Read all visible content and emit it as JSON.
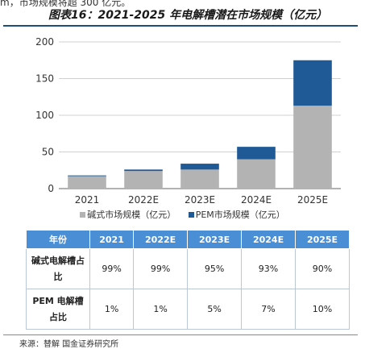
{
  "header_text": "m，市场规模将超 300 亿元。",
  "figure_title": "图表16：2021-2025 年电解槽潜在市场规模（亿元）",
  "chart_data": {
    "type": "bar",
    "stacked": true,
    "categories": [
      "2021",
      "2022E",
      "2023E",
      "2024E",
      "2025E"
    ],
    "series": [
      {
        "name": "碱式市场规模（亿元）",
        "color": "#b3b3b3",
        "values": [
          17,
          24,
          26,
          40,
          113
        ]
      },
      {
        "name": "PEM市场规模（亿元）",
        "color": "#1f5a96",
        "values": [
          1,
          2,
          8,
          17,
          62
        ]
      }
    ],
    "y_ticks": [
      "0",
      "50",
      "100",
      "150",
      "200"
    ],
    "ylim": [
      0,
      200
    ],
    "grid": true,
    "legend_position": "bottom"
  },
  "table": {
    "headers": [
      "年份",
      "2021",
      "2022E",
      "2023E",
      "2024E",
      "2025E"
    ],
    "rows": [
      {
        "label": "碱式电解槽占比",
        "values": [
          "99%",
          "99%",
          "95%",
          "93%",
          "90%"
        ]
      },
      {
        "label": "PEM 电解槽占比",
        "values": [
          "1%",
          "1%",
          "5%",
          "7%",
          "10%"
        ]
      }
    ]
  },
  "source": "来源：替解 国金证券研究所"
}
